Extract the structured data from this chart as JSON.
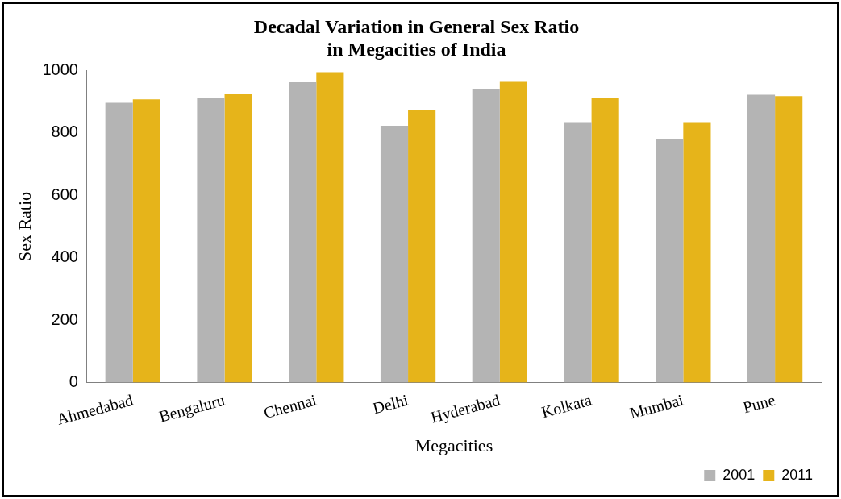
{
  "chart_data": {
    "type": "bar",
    "title": [
      "Decadal Variation in General Sex Ratio",
      "in Megacities of India"
    ],
    "xlabel": "Megacities",
    "ylabel": "Sex Ratio",
    "categories": [
      "Ahmedabad",
      "Bengaluru",
      "Chennai",
      "Delhi",
      "Hyderabad",
      "Kolkata",
      "Mumbai",
      "Pune"
    ],
    "series": [
      {
        "name": "2001",
        "color": "#b4b4b4",
        "values": [
          897,
          912,
          963,
          823,
          940,
          835,
          780,
          923
        ]
      },
      {
        "name": "2011",
        "color": "#e6b41a",
        "values": [
          908,
          924,
          995,
          874,
          964,
          913,
          835,
          918
        ]
      }
    ],
    "ylim": [
      0,
      1000
    ],
    "yticks": [
      0,
      200,
      400,
      600,
      800,
      1000
    ],
    "grid": false,
    "legend": "bottom right"
  }
}
